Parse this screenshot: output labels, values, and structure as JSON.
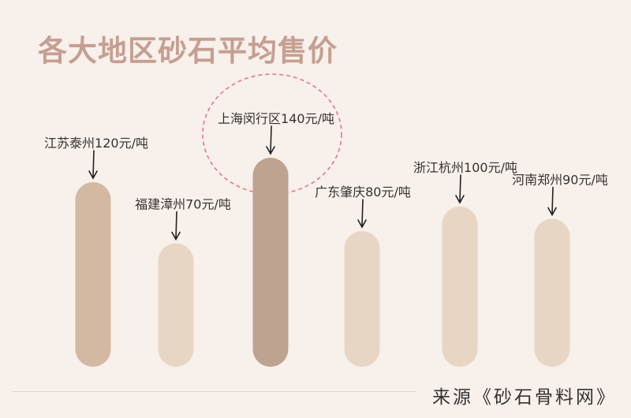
{
  "chart_data": {
    "type": "bar",
    "title": "各大地区砂石平均售价",
    "categories": [
      "江苏泰州",
      "福建漳州",
      "上海闵行区",
      "广东肇庆",
      "浙江杭州",
      "河南郑州"
    ],
    "values": [
      120,
      70,
      140,
      80,
      100,
      90
    ],
    "unit": "元/吨",
    "data_labels": [
      "江苏泰州120元/吨",
      "福建漳州70元/吨",
      "上海闵行区140元/吨",
      "广东肇庆80元/吨",
      "浙江杭州100元/吨",
      "河南郑州90元/吨"
    ],
    "highlight": "上海闵行区",
    "bar_colors": [
      "#d3b8a2",
      "#e8d6c5",
      "#bda390",
      "#e8d6c5",
      "#e8d6c5",
      "#e8d6c5"
    ],
    "highlight_color": "#e07a82",
    "grid": false
  },
  "source": "来源《砂石骨料网》",
  "colors": {
    "background": "#f8f0ea",
    "title": "#c59f92"
  }
}
